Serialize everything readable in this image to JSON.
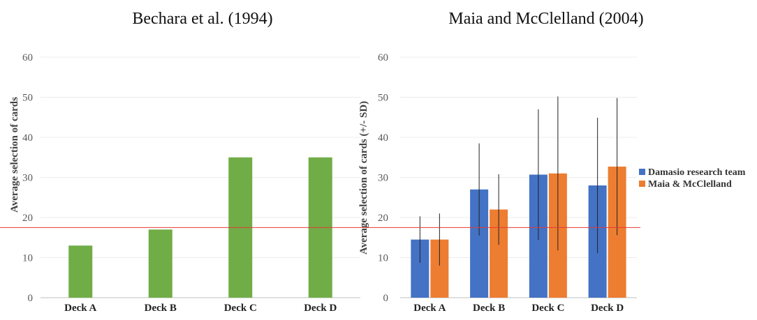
{
  "chart_data": [
    {
      "type": "bar",
      "title": "Bechara et al. (1994)",
      "xlabel": "",
      "ylabel": "Average selection of cards",
      "ylim": [
        0,
        60
      ],
      "yticks": [
        0,
        10,
        20,
        30,
        40,
        50,
        60
      ],
      "categories": [
        "Deck A",
        "Deck B",
        "Deck C",
        "Deck D"
      ],
      "series": [
        {
          "name": "Bechara et al. (1994)",
          "color": "#70ad47",
          "values": [
            13,
            17,
            35,
            35
          ]
        }
      ],
      "grid": true,
      "legend": "none"
    },
    {
      "type": "bar",
      "title": "Maia and McClelland (2004)",
      "xlabel": "",
      "ylabel": "Average selection of cards (+/- SD)",
      "ylim": [
        0,
        60
      ],
      "yticks": [
        0,
        10,
        20,
        30,
        40,
        50,
        60
      ],
      "categories": [
        "Deck A",
        "Deck B",
        "Deck C",
        "Deck D"
      ],
      "series": [
        {
          "name": "Damasio research team",
          "color": "#4472c4",
          "values": [
            14.5,
            27,
            30.7,
            28
          ],
          "sd": [
            5.8,
            11.5,
            16.3,
            16.9
          ]
        },
        {
          "name": "Maia & McClelland",
          "color": "#ed7d31",
          "values": [
            14.5,
            22,
            31,
            32.7
          ],
          "sd": [
            6.5,
            8.8,
            19.2,
            17.1
          ]
        }
      ],
      "grid": true,
      "legend": "right"
    }
  ],
  "reference_line": {
    "value": 17.5,
    "color": "#e53935"
  }
}
